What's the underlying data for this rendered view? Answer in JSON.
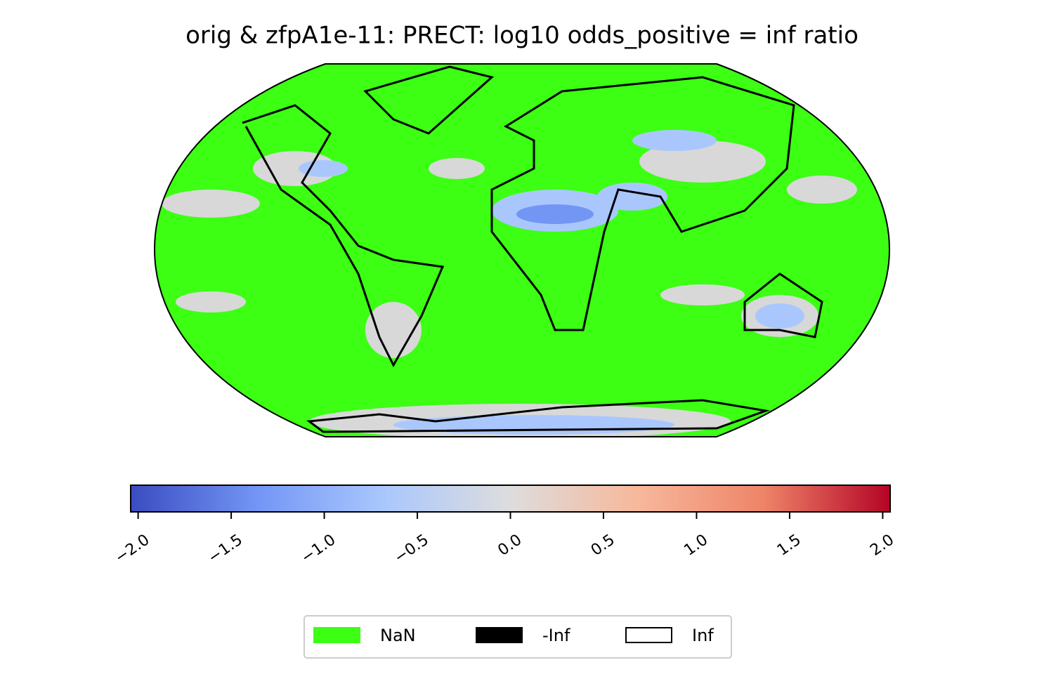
{
  "chart_data": {
    "type": "colorbar-map",
    "title": "orig & zfpA1e-11: PRECT: log10 odds_positive =  inf ratio",
    "colormap": [
      "#3b4cc0",
      "#7396f5",
      "#aac7fd",
      "#dddddd",
      "#f7b89c",
      "#ee8468",
      "#b40426"
    ],
    "clim": [
      -2.04,
      2.04
    ],
    "ticks": [
      {
        "value": -2.0,
        "label": "−2.0"
      },
      {
        "value": -1.5,
        "label": "−1.5"
      },
      {
        "value": -1.0,
        "label": "−1.0"
      },
      {
        "value": -0.5,
        "label": "−0.5"
      },
      {
        "value": 0.0,
        "label": "0.0"
      },
      0.5,
      {
        "value": 1.0,
        "label": "1.0"
      },
      1.5,
      {
        "value": 2.0,
        "label": "2.0"
      }
    ],
    "legend": [
      {
        "name": "NaN",
        "color": "#3cff14"
      },
      {
        "name": "-Inf",
        "color": "#000000"
      },
      {
        "name": "Inf",
        "color": "#ffffff"
      }
    ]
  }
}
